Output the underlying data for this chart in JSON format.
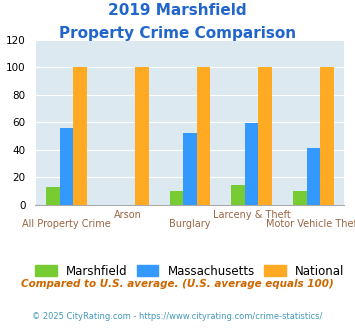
{
  "title_line1": "2019 Marshfield",
  "title_line2": "Property Crime Comparison",
  "categories": [
    "All Property Crime",
    "Arson",
    "Burglary",
    "Larceny & Theft",
    "Motor Vehicle Theft"
  ],
  "marshfield": [
    13,
    0,
    10,
    14,
    10
  ],
  "massachusetts": [
    56,
    0,
    52,
    59,
    41
  ],
  "national": [
    100,
    100,
    100,
    100,
    100
  ],
  "bar_colors": {
    "marshfield": "#77cc33",
    "massachusetts": "#3399ff",
    "national": "#ffaa22"
  },
  "ylim": [
    0,
    120
  ],
  "yticks": [
    0,
    20,
    40,
    60,
    80,
    100,
    120
  ],
  "xlabel_top": [
    "",
    "Arson",
    "",
    "Larceny & Theft",
    ""
  ],
  "xlabel_bottom": [
    "All Property Crime",
    "",
    "Burglary",
    "",
    "Motor Vehicle Theft"
  ],
  "background_color": "#dce9f0",
  "title_color": "#2266cc",
  "xlabel_color": "#996644",
  "legend_labels": [
    "Marshfield",
    "Massachusetts",
    "National"
  ],
  "footnote1": "Compared to U.S. average. (U.S. average equals 100)",
  "footnote2": "© 2025 CityRating.com - https://www.cityrating.com/crime-statistics/",
  "footnote1_color": "#cc6600",
  "footnote2_color": "#4499bb"
}
